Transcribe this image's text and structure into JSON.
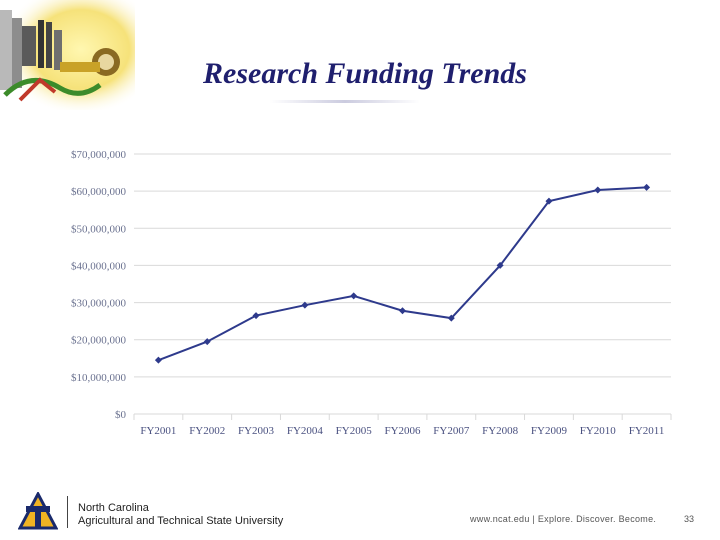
{
  "slide": {
    "title": "Research Funding Trends",
    "footer": {
      "university_line1": "North Carolina",
      "university_line2": "Agricultural and Technical State University",
      "url_tagline": "www.ncat.edu | Explore. Discover. Become.",
      "page_number": "33"
    },
    "logo_icon": "ncat-aggie-logo-icon",
    "header_art_icon": "campus-collage-icon"
  },
  "colors": {
    "title": "#1f1f6e",
    "line": "#2e3a8c",
    "grid": "#d9d9d9",
    "logo_gold": "#f0b323",
    "logo_blue": "#1a2a6c"
  },
  "chart_data": {
    "type": "line",
    "title": "",
    "xlabel": "",
    "ylabel": "",
    "categories": [
      "FY2001",
      "FY2002",
      "FY2003",
      "FY2004",
      "FY2005",
      "FY2006",
      "FY2007",
      "FY2008",
      "FY2009",
      "FY2010",
      "FY2011"
    ],
    "series": [
      {
        "values": [
          14500000,
          19500000,
          26500000,
          29300000,
          31800000,
          27800000,
          25800000,
          40000000,
          57300000,
          60300000,
          61000000
        ]
      }
    ],
    "ylim": [
      0,
      70000000
    ],
    "yticks": [
      "$0",
      "$10,000,000",
      "$20,000,000",
      "$30,000,000",
      "$40,000,000",
      "$50,000,000",
      "$60,000,000",
      "$70,000,000"
    ],
    "grid": true,
    "legend": "none",
    "markers": "diamond"
  }
}
